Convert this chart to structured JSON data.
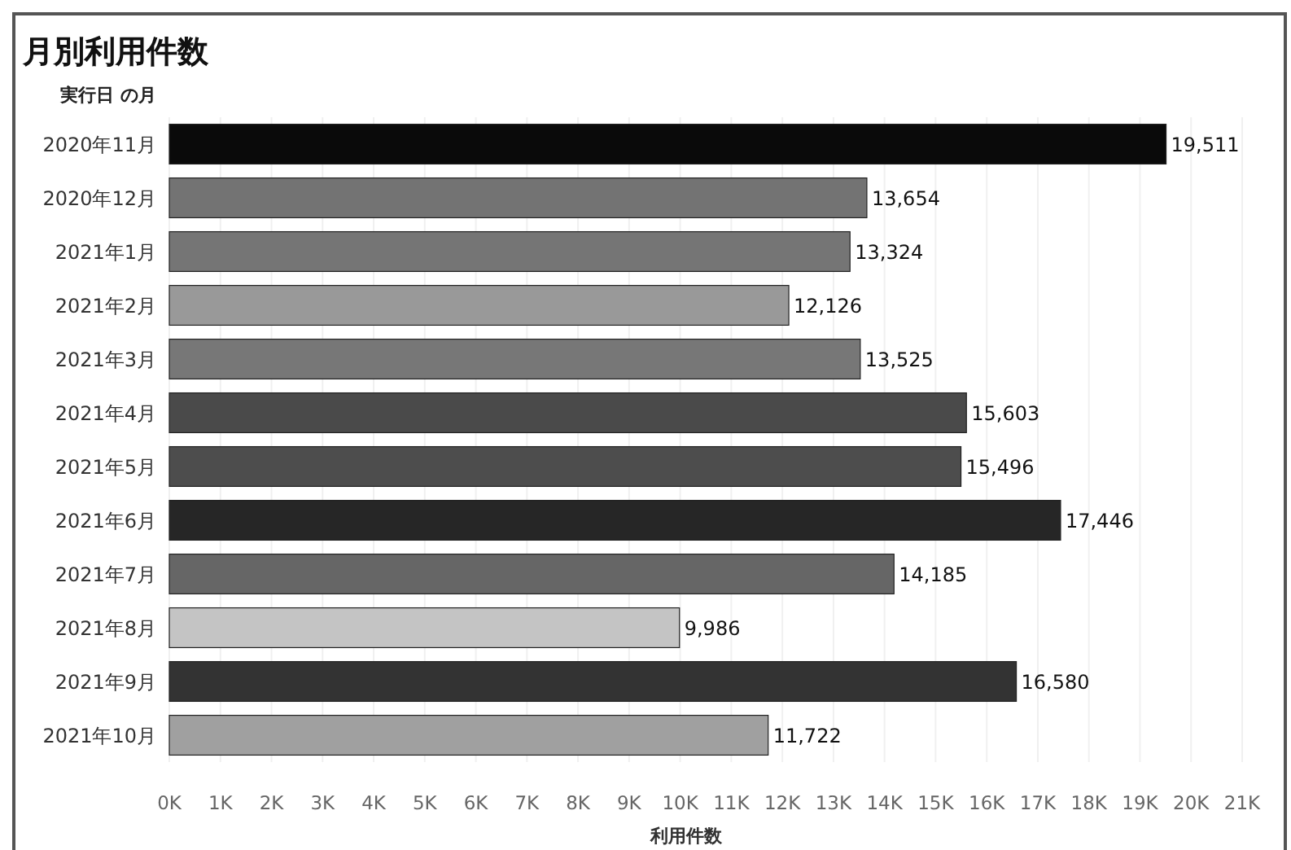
{
  "chart_data": {
    "type": "bar",
    "orientation": "horizontal",
    "title": "月別利用件数",
    "ylabel": "実行日 の月",
    "xlabel": "利用件数",
    "categories": [
      "2020年11月",
      "2020年12月",
      "2021年1月",
      "2021年2月",
      "2021年3月",
      "2021年4月",
      "2021年5月",
      "2021年6月",
      "2021年7月",
      "2021年8月",
      "2021年9月",
      "2021年10月"
    ],
    "values": [
      19511,
      13654,
      13324,
      12126,
      13525,
      15603,
      15496,
      17446,
      14185,
      9986,
      16580,
      11722
    ],
    "colors": [
      "#0a0a0a",
      "#737373",
      "#757575",
      "#999999",
      "#777777",
      "#4a4a4a",
      "#4d4d4d",
      "#262626",
      "#666666",
      "#c4c4c4",
      "#333333",
      "#a0a0a0"
    ],
    "value_labels": [
      "19,511",
      "13,654",
      "13,324",
      "12,126",
      "13,525",
      "15,603",
      "15,496",
      "17,446",
      "14,185",
      "9,986",
      "16,580",
      "11,722"
    ],
    "grid": "x",
    "xlim": [
      0,
      21000
    ],
    "xticks": [
      {
        "value": 0,
        "label": "0K"
      },
      {
        "value": 1000,
        "label": "1K"
      },
      {
        "value": 2000,
        "label": "2K"
      },
      {
        "value": 3000,
        "label": "3K"
      },
      {
        "value": 4000,
        "label": "4K"
      },
      {
        "value": 5000,
        "label": "5K"
      },
      {
        "value": 6000,
        "label": "6K"
      },
      {
        "value": 7000,
        "label": "7K"
      },
      {
        "value": 8000,
        "label": "8K"
      },
      {
        "value": 9000,
        "label": "9K"
      },
      {
        "value": 10000,
        "label": "10K"
      },
      {
        "value": 11000,
        "label": "11K"
      },
      {
        "value": 12000,
        "label": "12K"
      },
      {
        "value": 13000,
        "label": "13K"
      },
      {
        "value": 14000,
        "label": "14K"
      },
      {
        "value": 15000,
        "label": "15K"
      },
      {
        "value": 16000,
        "label": "16K"
      },
      {
        "value": 17000,
        "label": "17K"
      },
      {
        "value": 18000,
        "label": "18K"
      },
      {
        "value": 19000,
        "label": "19K"
      },
      {
        "value": 20000,
        "label": "20K"
      },
      {
        "value": 21000,
        "label": "21K"
      }
    ]
  }
}
